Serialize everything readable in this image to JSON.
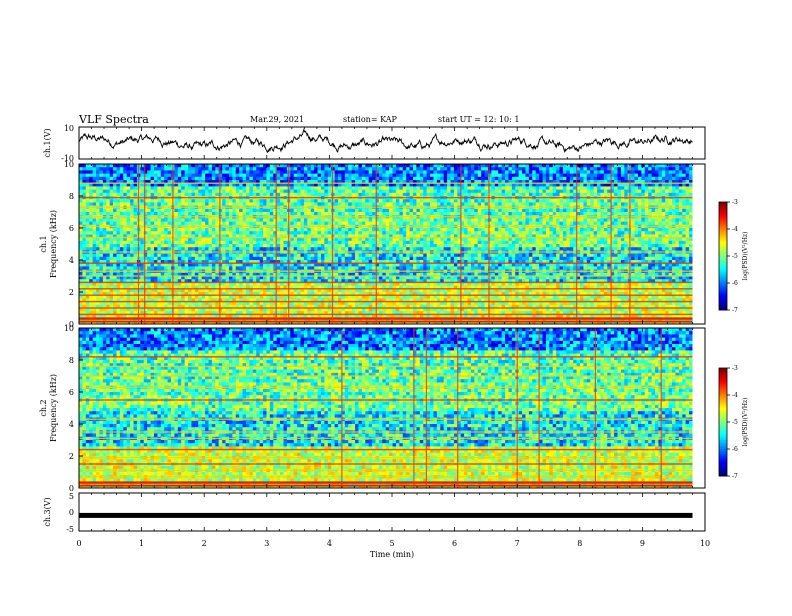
{
  "header": {
    "title": "VLF Spectra",
    "date": "Mar.29, 2021",
    "station": "station= KAP",
    "start_ut": "start  UT =   12: 10: 1"
  },
  "chart_data": [
    {
      "id": "ch1-waveform",
      "type": "line",
      "ylabel": "ch.1(V)",
      "ylim": [
        -10,
        10
      ],
      "yticks": [
        "10",
        "-10"
      ],
      "xlim": [
        0,
        10
      ],
      "x_end_data": 9.8,
      "series": [
        {
          "color": "#000000"
        }
      ]
    },
    {
      "id": "ch1-spectrogram",
      "type": "heatmap",
      "ylabel_line1": "ch.1",
      "ylabel_line2": "Frequency (kHz)",
      "ylim": [
        0,
        10
      ],
      "yticks": [
        "0",
        "2",
        "4",
        "6",
        "8",
        "10"
      ],
      "xlim": [
        0,
        10
      ],
      "x_end_data": 9.8,
      "colorbar": {
        "label": "log(PSD)(V²/Hz)",
        "range": [
          -7,
          -3
        ],
        "ticks": [
          "-3",
          "-4",
          "-5",
          "-6",
          "-7"
        ]
      },
      "bands_khz": [
        0.3,
        0.6,
        1.0,
        1.4,
        1.8,
        2.2,
        2.6,
        3.0,
        3.3,
        3.8,
        4.5,
        5.4,
        6.1,
        6.7,
        7.3,
        7.9,
        8.8
      ],
      "spikes_min": [
        0.95,
        1.05,
        1.5,
        2.25,
        3.15,
        3.35,
        4.05,
        4.75,
        6.1,
        6.55,
        7.95,
        8.5,
        8.8
      ],
      "bands_bottom_line": [
        0.15,
        0.35
      ]
    },
    {
      "id": "ch2-spectrogram",
      "type": "heatmap",
      "ylabel_line1": "ch.2",
      "ylabel_line2": "Frequency (kHz)",
      "ylim": [
        0,
        10
      ],
      "yticks": [
        "0",
        "2",
        "4",
        "6",
        "8",
        "10"
      ],
      "xlim": [
        0,
        10
      ],
      "x_end_data": 9.8,
      "colorbar": {
        "label": "log(PSD)(V²/Hz)",
        "range": [
          -7,
          -3
        ],
        "ticks": [
          "-3",
          "-4",
          "-5",
          "-6",
          "-7"
        ]
      },
      "bands_khz": [
        0.3,
        0.7,
        1.1,
        1.5,
        1.9,
        2.4,
        3.1,
        3.5,
        4.3,
        5.5,
        6.3,
        7.0,
        7.6,
        8.2
      ],
      "spikes_min": [
        4.2,
        5.35,
        5.55,
        6.05,
        7.0,
        7.35,
        8.25,
        9.3
      ],
      "bands_bottom_line": [
        0.15,
        0.35
      ]
    },
    {
      "id": "ch3-waveform",
      "type": "line",
      "ylabel": "ch.3(V)",
      "ylim": [
        -5,
        5
      ],
      "yticks": [
        "5",
        "0",
        "-5"
      ],
      "xlim": [
        0,
        10
      ],
      "x_end_data": 9.8,
      "level_v": -1.0,
      "series": [
        {
          "color": "#000000"
        }
      ]
    }
  ],
  "x_axis": {
    "label": "Time (min)",
    "ticks": [
      "0",
      "1",
      "2",
      "3",
      "4",
      "5",
      "6",
      "7",
      "8",
      "9",
      "10"
    ]
  }
}
